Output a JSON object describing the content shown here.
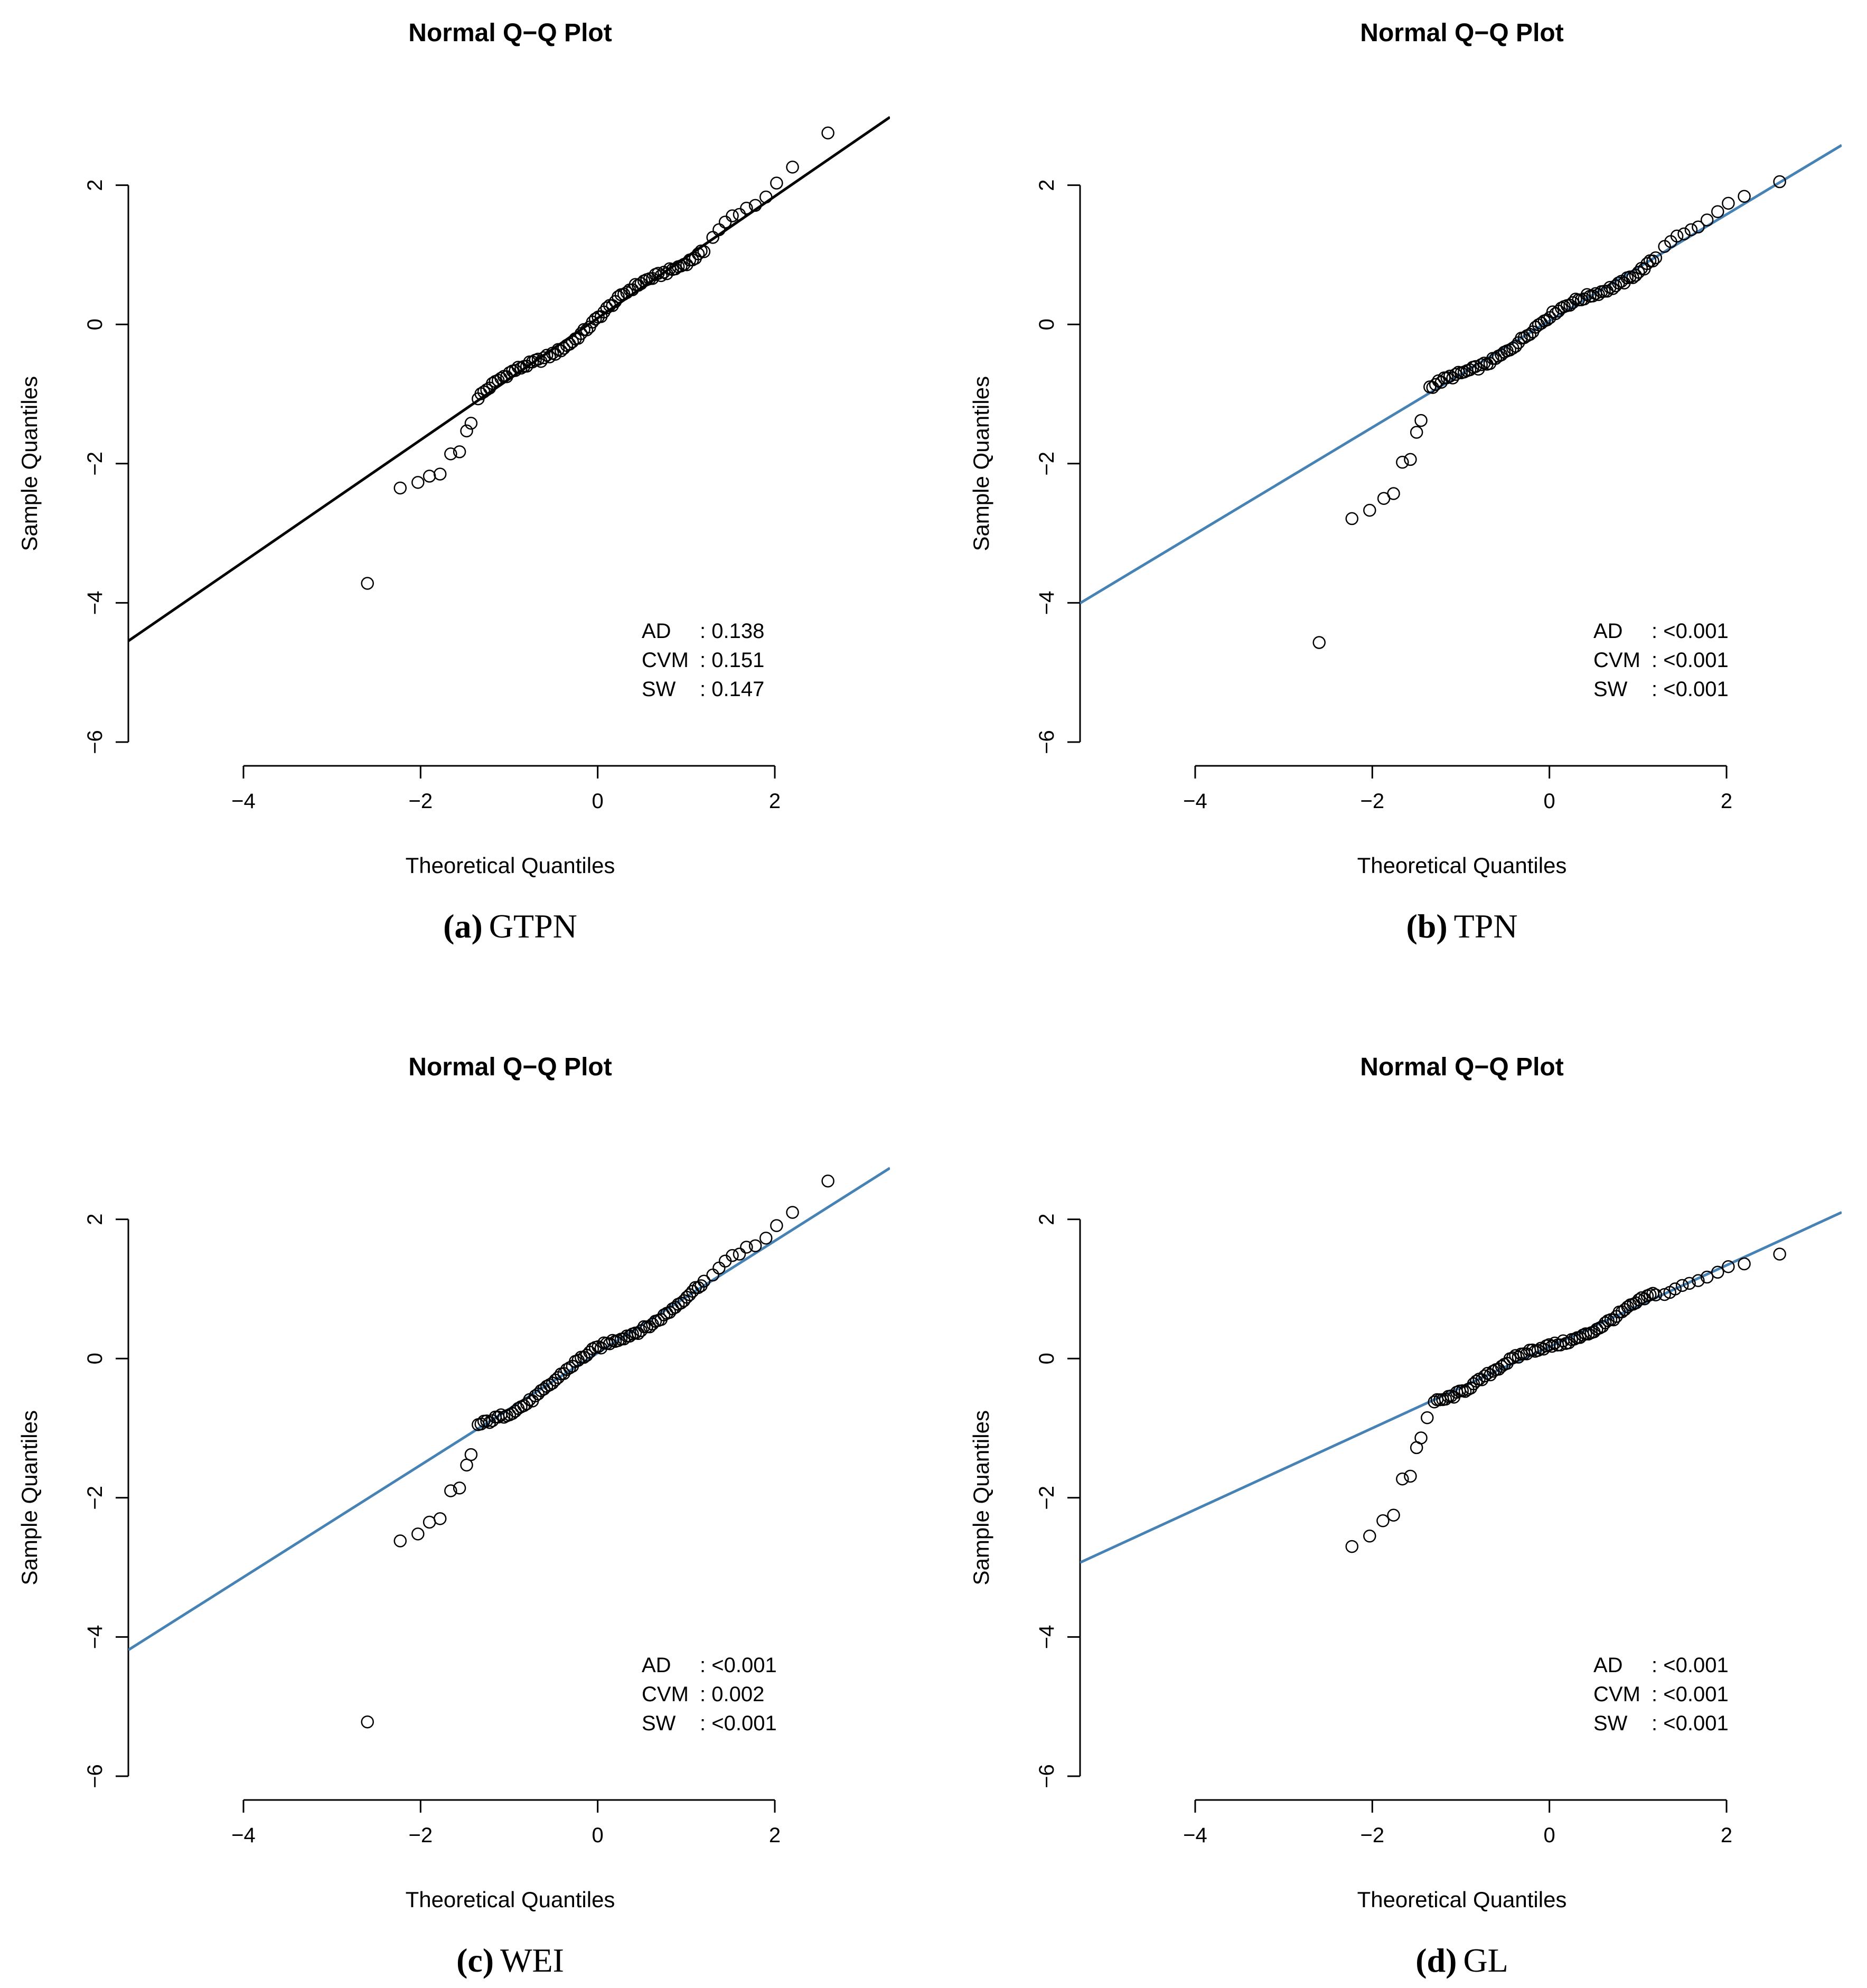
{
  "chart_data": [
    {
      "type": "scatter",
      "panel": "a",
      "title": "Normal Q−Q Plot",
      "xlabel": "Theoretical Quantiles",
      "ylabel": "Sample Quantiles",
      "caption_letter": "(a)",
      "caption_text": "GTPN",
      "xlim": [
        -5.3,
        3.3
      ],
      "ylim": [
        -6.0,
        2.9
      ],
      "xticks": [
        -4,
        -2,
        0,
        2
      ],
      "xtick_labels": [
        "−4",
        "−2",
        "0",
        "2"
      ],
      "yticks": [
        -6,
        -4,
        -2,
        0,
        2
      ],
      "ytick_labels": [
        "−6",
        "−4",
        "−2",
        "0",
        "2"
      ],
      "line_color": "#000000",
      "line": {
        "intercept": 0.09,
        "slope": 0.875
      },
      "points": {
        "style": "smooth",
        "slope": 0.875,
        "intercept": 0.09,
        "wiggle": 0.09,
        "n_core": 80,
        "core_range": [
          -1.35,
          1.2
        ],
        "tail_x": [
          -2.6,
          -2.23,
          -2.03,
          -1.9,
          -1.78,
          -1.66,
          -1.56,
          -1.48,
          -1.43,
          1.3,
          1.37,
          1.44,
          1.52,
          1.6,
          1.68,
          1.78,
          1.9,
          2.02,
          2.2,
          2.6
        ],
        "tail_y": [
          -3.72,
          -2.35,
          -2.27,
          -2.18,
          -2.15,
          -1.86,
          -1.83,
          -1.53,
          -1.42,
          1.25,
          1.36,
          1.47,
          1.56,
          1.58,
          1.67,
          1.71,
          1.83,
          2.03,
          2.26,
          2.75
        ]
      },
      "stats": [
        {
          "name": "AD   ",
          "value": ": 0.138"
        },
        {
          "name": "CVM",
          "value": ": 0.151"
        },
        {
          "name": "SW   ",
          "value": ": 0.147"
        }
      ]
    },
    {
      "type": "scatter",
      "panel": "b",
      "title": "Normal Q−Q Plot",
      "xlabel": "Theoretical Quantiles",
      "ylabel": "Sample Quantiles",
      "caption_letter": "(b)",
      "caption_text": "TPN",
      "xlim": [
        -5.3,
        3.3
      ],
      "ylim": [
        -6.0,
        2.9
      ],
      "xticks": [
        -4,
        -2,
        0,
        2
      ],
      "xtick_labels": [
        "−4",
        "−2",
        "0",
        "2"
      ],
      "yticks": [
        -6,
        -4,
        -2,
        0,
        2
      ],
      "ytick_labels": [
        "−6",
        "−4",
        "−2",
        "0",
        "2"
      ],
      "line_color": "#4682b4",
      "line": {
        "intercept": 0.05,
        "slope": 0.765
      },
      "points": {
        "style": "smooth",
        "slope": 0.765,
        "intercept": 0.05,
        "wiggle": 0.08,
        "n_core": 80,
        "core_range": [
          -1.35,
          1.2
        ],
        "tail_x": [
          -2.6,
          -2.23,
          -2.03,
          -1.87,
          -1.76,
          -1.66,
          -1.57,
          -1.5,
          -1.45,
          1.3,
          1.37,
          1.44,
          1.52,
          1.6,
          1.68,
          1.78,
          1.9,
          2.02,
          2.2,
          2.6
        ],
        "tail_y": [
          -4.57,
          -2.79,
          -2.67,
          -2.5,
          -2.43,
          -1.98,
          -1.94,
          -1.55,
          -1.38,
          1.12,
          1.19,
          1.27,
          1.3,
          1.36,
          1.4,
          1.5,
          1.62,
          1.74,
          1.84,
          2.05
        ]
      },
      "stats": [
        {
          "name": "AD   ",
          "value": ": <0.001"
        },
        {
          "name": "CVM",
          "value": ": <0.001"
        },
        {
          "name": "SW   ",
          "value": ": <0.001"
        }
      ]
    },
    {
      "type": "scatter",
      "panel": "c",
      "title": "Normal Q−Q Plot",
      "xlabel": "Theoretical Quantiles",
      "ylabel": "Sample Quantiles",
      "caption_letter": "(c)",
      "caption_text": "WEI",
      "xlim": [
        -5.3,
        3.3
      ],
      "ylim": [
        -6.0,
        2.9
      ],
      "xticks": [
        -4,
        -2,
        0,
        2
      ],
      "xtick_labels": [
        "−4",
        "−2",
        "0",
        "2"
      ],
      "yticks": [
        -6,
        -4,
        -2,
        0,
        2
      ],
      "ytick_labels": [
        "−6",
        "−4",
        "−2",
        "0",
        "2"
      ],
      "line_color": "#4682b4",
      "line": {
        "intercept": 0.08,
        "slope": 0.805
      },
      "points": {
        "style": "smooth",
        "slope": 0.805,
        "intercept": 0.08,
        "wiggle": 0.08,
        "n_core": 80,
        "core_range": [
          -1.35,
          1.2
        ],
        "tail_x": [
          -2.6,
          -2.23,
          -2.03,
          -1.9,
          -1.78,
          -1.66,
          -1.56,
          -1.48,
          -1.43,
          1.3,
          1.37,
          1.44,
          1.52,
          1.6,
          1.68,
          1.78,
          1.9,
          2.02,
          2.2,
          2.6
        ],
        "tail_y": [
          -5.22,
          -2.62,
          -2.52,
          -2.35,
          -2.3,
          -1.9,
          -1.86,
          -1.53,
          -1.38,
          1.2,
          1.3,
          1.4,
          1.48,
          1.5,
          1.6,
          1.62,
          1.73,
          1.91,
          2.1,
          2.55
        ]
      },
      "stats": [
        {
          "name": "AD   ",
          "value": ": <0.001"
        },
        {
          "name": "CVM",
          "value": ": 0.002"
        },
        {
          "name": "SW   ",
          "value": ": <0.001"
        }
      ]
    },
    {
      "type": "scatter",
      "panel": "d",
      "title": "Normal Q−Q Plot",
      "xlabel": "Theoretical Quantiles",
      "ylabel": "Sample Quantiles",
      "caption_letter": "(d)",
      "caption_text": "GL",
      "xlim": [
        -5.3,
        3.3
      ],
      "ylim": [
        -6.0,
        2.9
      ],
      "xticks": [
        -4,
        -2,
        0,
        2
      ],
      "xtick_labels": [
        "−4",
        "−2",
        "0",
        "2"
      ],
      "yticks": [
        -6,
        -4,
        -2,
        0,
        2
      ],
      "ytick_labels": [
        "−6",
        "−4",
        "−2",
        "0",
        "2"
      ],
      "line_color": "#4682b4",
      "line": {
        "intercept": 0.17,
        "slope": 0.585
      },
      "points": {
        "style": "smooth",
        "slope": 0.585,
        "intercept": 0.17,
        "wiggle": 0.07,
        "n_core": 80,
        "core_range": [
          -1.3,
          1.2
        ],
        "tail_x": [
          -2.23,
          -2.03,
          -1.88,
          -1.76,
          -1.66,
          -1.57,
          -1.5,
          -1.45,
          -1.38,
          1.3,
          1.36,
          1.42,
          1.5,
          1.58,
          1.68,
          1.78,
          1.9,
          2.02,
          2.2,
          2.6
        ],
        "tail_y": [
          -2.7,
          -2.55,
          -2.33,
          -2.25,
          -1.73,
          -1.69,
          -1.28,
          -1.14,
          -0.85,
          0.92,
          0.95,
          1.0,
          1.05,
          1.08,
          1.12,
          1.17,
          1.24,
          1.32,
          1.36,
          1.5
        ]
      },
      "stats": [
        {
          "name": "AD   ",
          "value": ": <0.001"
        },
        {
          "name": "CVM",
          "value": ":  <0.001"
        },
        {
          "name": "SW   ",
          "value": ": <0.001"
        }
      ]
    }
  ]
}
